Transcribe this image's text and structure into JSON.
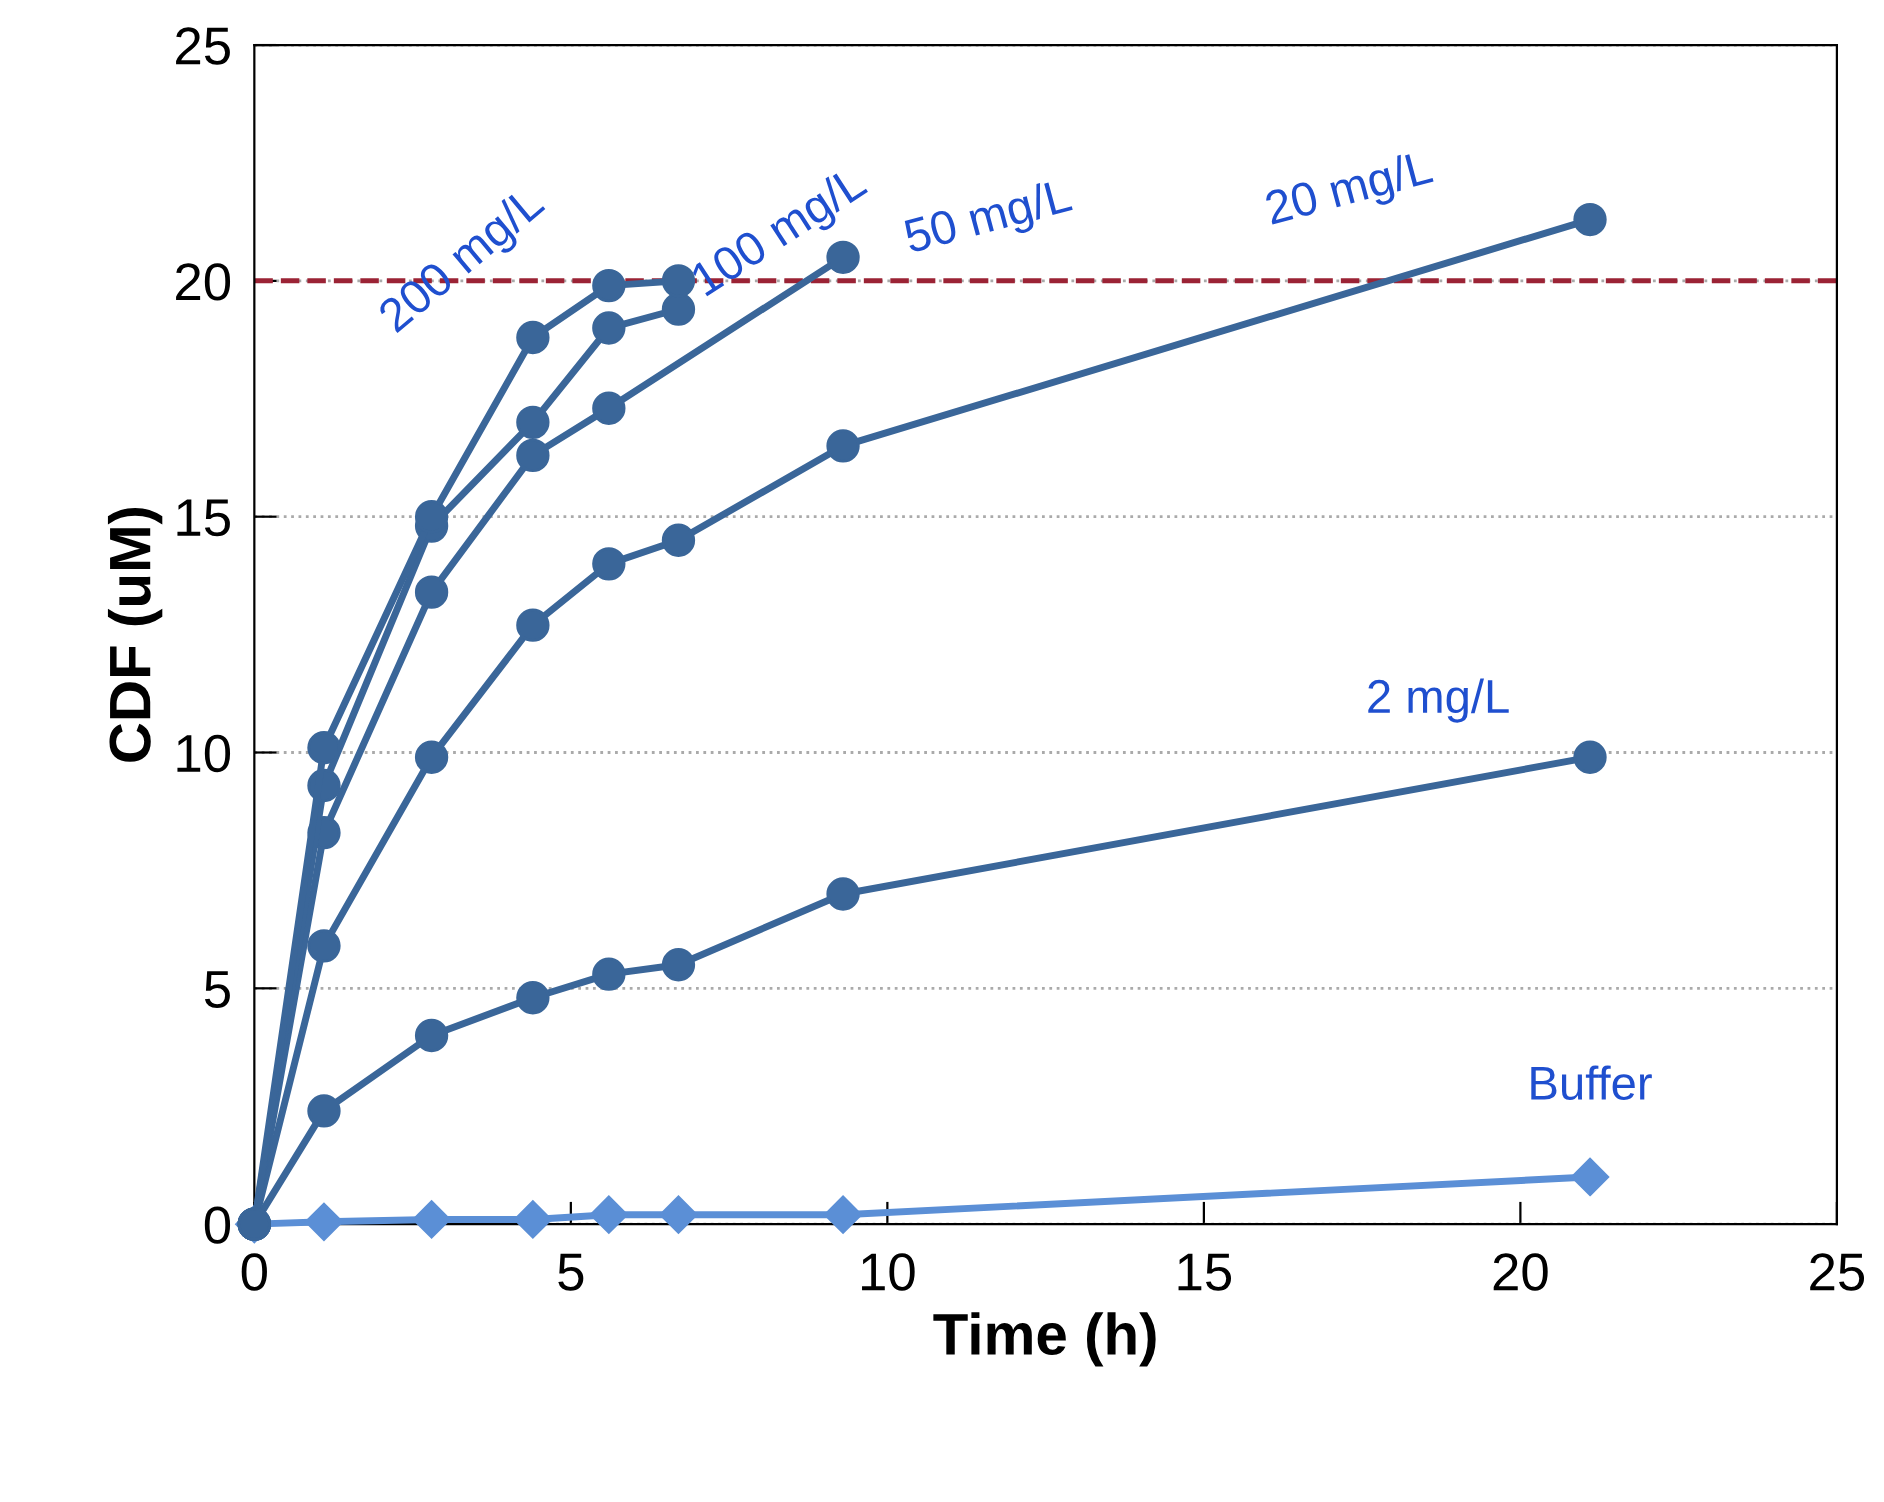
{
  "chart_data": {
    "type": "line",
    "xlabel": "Time (h)",
    "ylabel": "CDF (uM)",
    "xlim": [
      0,
      25
    ],
    "xticks": [
      0,
      5,
      10,
      15,
      20,
      25
    ],
    "ylim": [
      0,
      25
    ],
    "yticks": [
      0,
      5,
      10,
      15,
      20,
      25
    ],
    "grid": "y",
    "marker": "circle",
    "line_style": "solid",
    "ref_lines": [
      {
        "axis": "y",
        "value": 20,
        "color": "#9b2335",
        "line_style": "dashed"
      }
    ],
    "series": [
      {
        "name": "200 mg/L",
        "color": "#3a6699",
        "x": [
          0,
          1.1,
          2.8,
          4.4,
          5.6,
          6.7
        ],
        "values": [
          0,
          10.1,
          15.0,
          18.8,
          19.9,
          20.0
        ]
      },
      {
        "name": "100 mg/L",
        "color": "#3a6699",
        "x": [
          0,
          1.1,
          2.8,
          4.4,
          5.6,
          6.7
        ],
        "values": [
          0,
          9.3,
          14.8,
          17.0,
          19.0,
          19.4
        ]
      },
      {
        "name": "50 mg/L",
        "color": "#3a6699",
        "x": [
          0,
          1.1,
          2.8,
          4.4,
          5.6,
          9.3
        ],
        "values": [
          0,
          8.3,
          13.4,
          16.3,
          17.3,
          20.5
        ]
      },
      {
        "name": "20 mg/L",
        "color": "#3a6699",
        "x": [
          0,
          1.1,
          2.8,
          4.4,
          5.6,
          6.7,
          9.3,
          21.1
        ],
        "values": [
          0,
          5.9,
          9.9,
          12.7,
          14.0,
          14.5,
          16.5,
          21.3
        ]
      },
      {
        "name": "2 mg/L",
        "color": "#3a6699",
        "x": [
          0,
          1.1,
          2.8,
          4.4,
          5.6,
          6.7,
          9.3,
          21.1
        ],
        "values": [
          0,
          2.4,
          4.0,
          4.8,
          5.3,
          5.5,
          7.0,
          9.9
        ]
      },
      {
        "name": "Buffer",
        "color": "#5b8fd6",
        "marker": "diamond",
        "x": [
          0,
          1.1,
          2.8,
          4.4,
          5.6,
          6.7,
          9.3,
          21.1
        ],
        "values": [
          0,
          0.05,
          0.1,
          0.1,
          0.2,
          0.2,
          0.2,
          1.0
        ]
      }
    ]
  }
}
